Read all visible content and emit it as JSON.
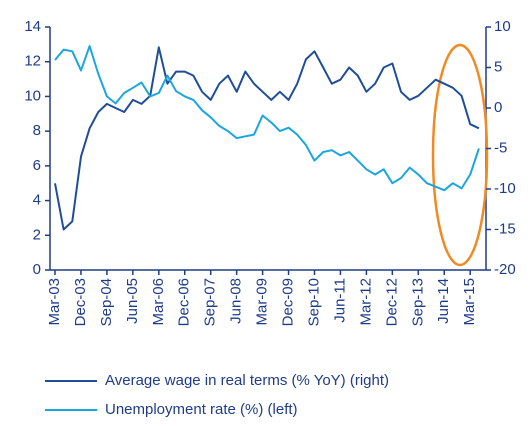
{
  "chart_data": {
    "type": "line",
    "categories": [
      "Mar-03",
      null,
      null,
      "Dec-03",
      null,
      null,
      "Sep-04",
      null,
      null,
      "Jun-05",
      null,
      null,
      "Mar-06",
      null,
      null,
      "Dec-06",
      null,
      null,
      "Sep-07",
      null,
      null,
      "Jun-08",
      null,
      null,
      "Mar-09",
      null,
      null,
      "Dec-09",
      null,
      null,
      "Sep-10",
      null,
      null,
      "Jun-11",
      null,
      null,
      "Mar-12",
      null,
      null,
      "Dec-12",
      null,
      null,
      "Sep-13",
      null,
      null,
      "Jun-14",
      null,
      null,
      "Mar-15",
      null
    ],
    "series": [
      {
        "name": "Average wage in real terms (% YoY) (right)",
        "color": "#1f4e99",
        "axis": "y2",
        "values": [
          -9.3,
          -15,
          -14,
          -6,
          -2.5,
          -0.5,
          0.5,
          0,
          -0.5,
          1,
          0.5,
          1.5,
          7.5,
          3,
          4.5,
          4.5,
          4,
          2,
          1,
          3,
          4,
          2,
          4.5,
          3,
          2,
          1,
          2,
          1,
          3,
          6,
          7,
          5,
          3,
          3.5,
          5,
          4,
          2,
          3,
          5,
          5.5,
          2,
          1,
          1.5,
          2.5,
          3.5,
          3,
          2.5,
          1.5,
          -2,
          -2.5
        ]
      },
      {
        "name": "Unemployment rate (%) (left)",
        "color": "#1ba6de",
        "values": [
          12.1,
          12.7,
          12.6,
          11.5,
          12.9,
          11.3,
          10.0,
          9.6,
          10.2,
          10.5,
          10.8,
          10.0,
          10.2,
          11.2,
          10.3,
          10.0,
          9.8,
          9.2,
          8.8,
          8.3,
          8.0,
          7.6,
          7.7,
          7.8,
          8.9,
          8.5,
          8.0,
          8.2,
          7.8,
          7.2,
          6.3,
          6.8,
          6.9,
          6.6,
          6.8,
          6.3,
          5.8,
          5.5,
          5.8,
          5.0,
          5.3,
          5.9,
          5.5,
          5.0,
          4.8,
          4.6,
          5.0,
          4.7,
          5.5,
          7.0
        ]
      }
    ],
    "ylim": [
      0,
      14
    ],
    "yticks": [
      0,
      2,
      4,
      6,
      8,
      10,
      12,
      14
    ],
    "y2lim": [
      -20,
      10
    ],
    "y2ticks": [
      -20,
      -15,
      -10,
      -5,
      0,
      5,
      10
    ]
  }
}
